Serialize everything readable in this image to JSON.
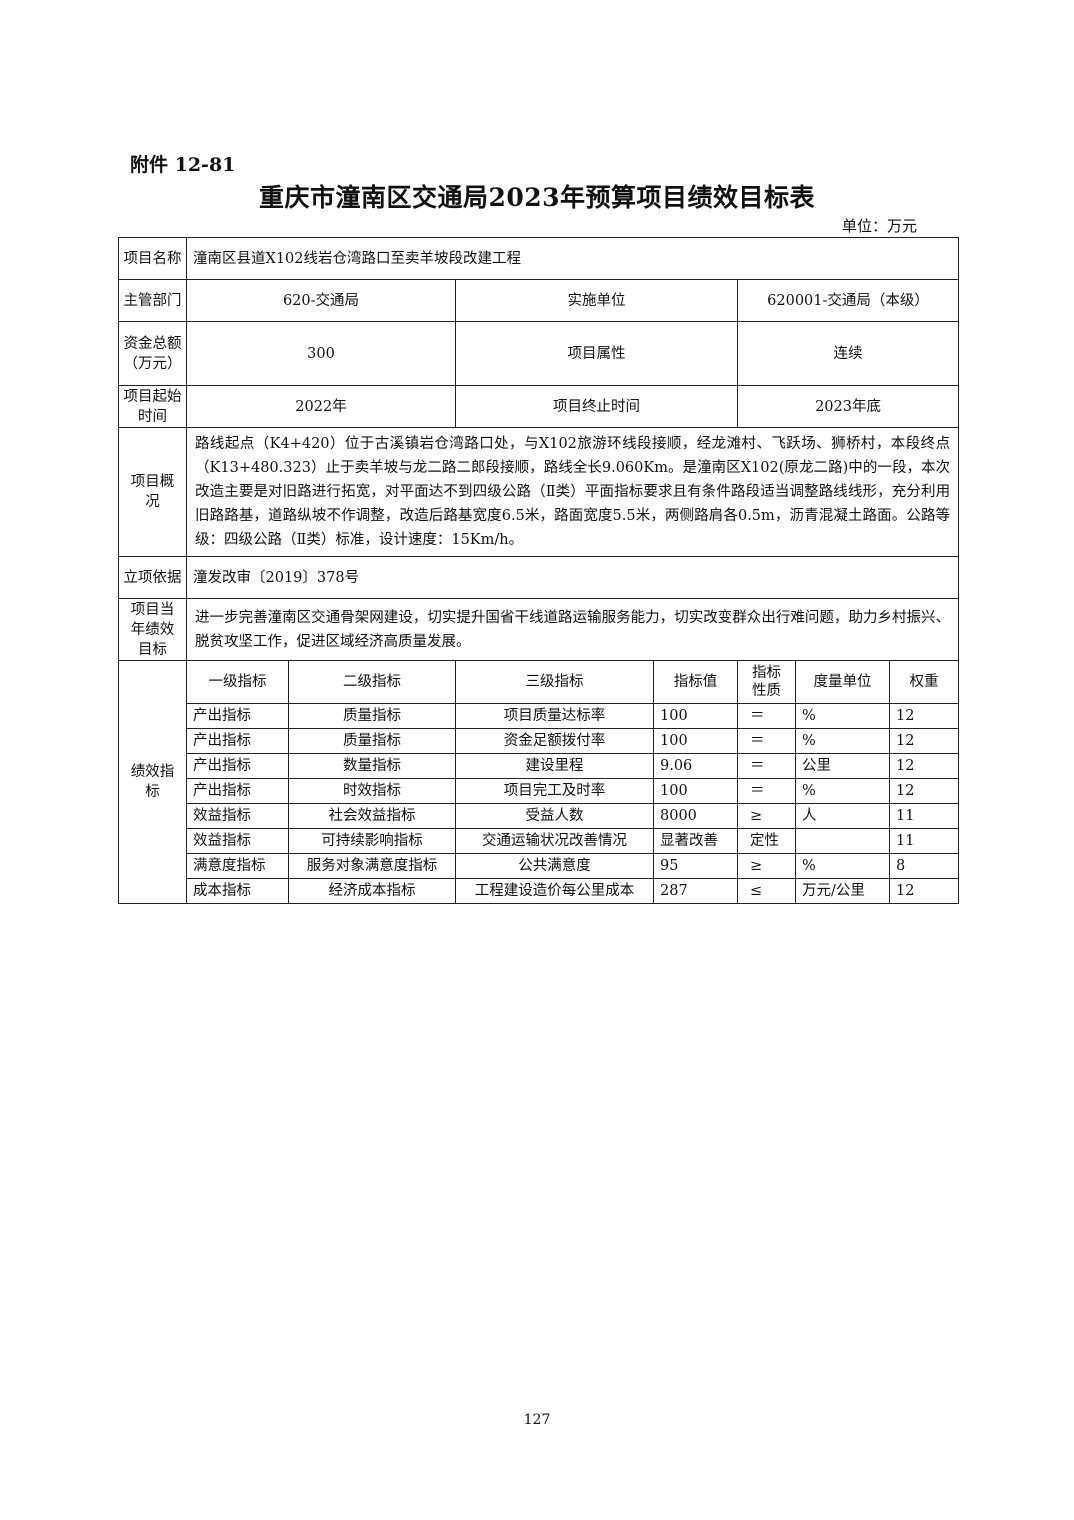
{
  "attachment": "附件 12-81",
  "title": "重庆市潼南区交通局2023年预算项目绩效目标表",
  "unit": "单位：万元",
  "info": {
    "project_name_label": "项目名称",
    "project_name": "潼南区县道X102线岩仓湾路口至卖羊坡段改建工程",
    "dept_label": "主管部门",
    "dept": "620-交通局",
    "impl_label": "实施单位",
    "impl": "620001-交通局（本级）",
    "fund_label": "资金总额（万元）",
    "fund": "300",
    "attr_label": "项目属性",
    "attr": "连续",
    "start_label": "项目起始时间",
    "start": "2022年",
    "end_label": "项目终止时间",
    "end": "2023年底",
    "overview_label": "项目概况",
    "overview": "路线起点（K4+420）位于古溪镇岩仓湾路口处，与X102旅游环线段接顺，经龙滩村、飞跃场、狮桥村，本段终点（K13+480.323）止于卖羊坡与龙二路二郎段接顺，路线全长9.060Km。是潼南区X102(原龙二路)中的一段，本次改造主要是对旧路进行拓宽，对平面达不到四级公路（Ⅱ类）平面指标要求且有条件路段适当调整路线线形，充分利用旧路路基，道路纵坡不作调整，改造后路基宽度6.5米，路面宽度5.5米，两侧路肩各0.5m，沥青混凝土路面。公路等级：四级公路（Ⅱ类）标准，设计速度：15Km/h。",
    "basis_label": "立项依据",
    "basis": "潼发改审〔2019〕378号",
    "goal_label": "项目当年绩效目标",
    "goal": "进一步完善潼南区交通骨架网建设，切实提升国省干线道路运输服务能力，切实改变群众出行难问题，助力乡村振兴、脱贫攻坚工作，促进区域经济高质量发展。"
  },
  "indicators": {
    "label": "绩效指标",
    "headers": [
      "一级指标",
      "二级指标",
      "三级指标",
      "指标值",
      "指标性质",
      "度量单位",
      "权重"
    ],
    "rows": [
      [
        "产出指标",
        "质量指标",
        "项目质量达标率",
        "100",
        "＝",
        "%",
        "12"
      ],
      [
        "产出指标",
        "质量指标",
        "资金足额拨付率",
        "100",
        "＝",
        "%",
        "12"
      ],
      [
        "产出指标",
        "数量指标",
        "建设里程",
        "9.06",
        "＝",
        "公里",
        "12"
      ],
      [
        "产出指标",
        "时效指标",
        "项目完工及时率",
        "100",
        "＝",
        "%",
        "12"
      ],
      [
        "效益指标",
        "社会效益指标",
        "受益人数",
        "8000",
        "≥",
        "人",
        "11"
      ],
      [
        "效益指标",
        "可持续影响指标",
        "交通运输状况改善情况",
        "显著改善",
        "定性",
        "",
        "11"
      ],
      [
        "满意度指标",
        "服务对象满意度指标",
        "公共满意度",
        "95",
        "≥",
        "%",
        "8"
      ],
      [
        "成本指标",
        "经济成本指标",
        "工程建设造价每公里成本",
        "287",
        "≤",
        "万元/公里",
        "12"
      ]
    ]
  },
  "page_number": "127"
}
